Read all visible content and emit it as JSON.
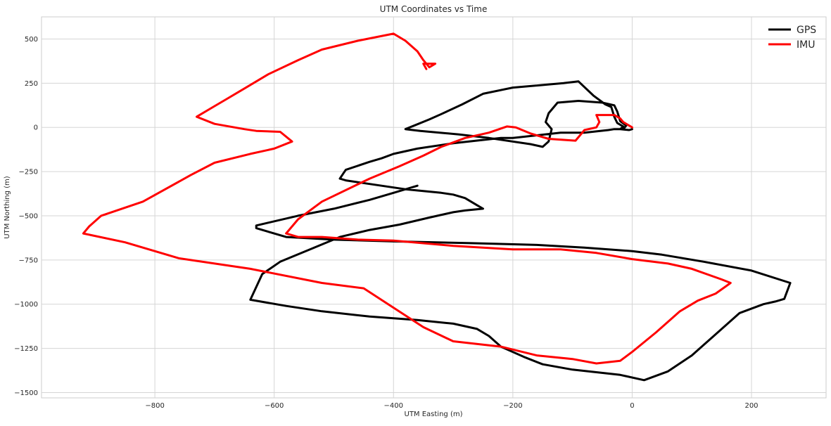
{
  "chart_data": {
    "type": "line",
    "title": "UTM Coordinates vs Time",
    "xlabel": "UTM Easting (m)",
    "ylabel": "UTM Northing (m)",
    "xlim": [
      -990,
      325
    ],
    "ylim": [
      -1530,
      625
    ],
    "xticks": [
      -800,
      -600,
      -400,
      -200,
      0,
      200
    ],
    "yticks": [
      500,
      250,
      0,
      -250,
      -500,
      -750,
      -1000,
      -1250,
      -1500
    ],
    "xtick_labels": [
      "−800",
      "−600",
      "−400",
      "−200",
      "0",
      "200"
    ],
    "ytick_labels": [
      "500",
      "250",
      "0",
      "−250",
      "−500",
      "−750",
      "−1000",
      "−1250",
      "−1500"
    ],
    "grid": true,
    "legend_position": "top-right",
    "series": [
      {
        "name": "GPS",
        "color": "#000000",
        "points": [
          [
            0,
            -10
          ],
          [
            -5,
            -15
          ],
          [
            -20,
            -10
          ],
          [
            -15,
            5
          ],
          [
            -25,
            25
          ],
          [
            -30,
            60
          ],
          [
            -35,
            115
          ],
          [
            -45,
            130
          ],
          [
            -65,
            180
          ],
          [
            -90,
            260
          ],
          [
            -115,
            250
          ],
          [
            -200,
            225
          ],
          [
            -250,
            190
          ],
          [
            -285,
            130
          ],
          [
            -320,
            75
          ],
          [
            -340,
            45
          ],
          [
            -380,
            -10
          ],
          [
            -355,
            -20
          ],
          [
            -290,
            -40
          ],
          [
            -240,
            -60
          ],
          [
            -170,
            -95
          ],
          [
            -150,
            -110
          ],
          [
            -140,
            -80
          ],
          [
            -135,
            -10
          ],
          [
            -145,
            30
          ],
          [
            -140,
            80
          ],
          [
            -125,
            140
          ],
          [
            -90,
            150
          ],
          [
            -50,
            140
          ],
          [
            -30,
            125
          ],
          [
            -25,
            90
          ],
          [
            -20,
            35
          ],
          [
            -10,
            10
          ],
          [
            -15,
            -10
          ],
          [
            -30,
            -10
          ],
          [
            -40,
            -15
          ],
          [
            -80,
            -30
          ],
          [
            -120,
            -30
          ],
          [
            -200,
            -60
          ],
          [
            -220,
            -60
          ],
          [
            -300,
            -90
          ],
          [
            -360,
            -120
          ],
          [
            -400,
            -150
          ],
          [
            -420,
            -175
          ],
          [
            -440,
            -195
          ],
          [
            -480,
            -240
          ],
          [
            -490,
            -290
          ],
          [
            -480,
            -300
          ],
          [
            -440,
            -320
          ],
          [
            -380,
            -350
          ],
          [
            -320,
            -370
          ],
          [
            -300,
            -380
          ],
          [
            -280,
            -400
          ],
          [
            -260,
            -440
          ],
          [
            -250,
            -460
          ],
          [
            -280,
            -470
          ],
          [
            -300,
            -480
          ],
          [
            -340,
            -510
          ],
          [
            -390,
            -550
          ],
          [
            -440,
            -580
          ],
          [
            -490,
            -620
          ],
          [
            -540,
            -690
          ],
          [
            -590,
            -760
          ],
          [
            -620,
            -830
          ],
          [
            -640,
            -975
          ],
          [
            -580,
            -1010
          ],
          [
            -520,
            -1040
          ],
          [
            -440,
            -1070
          ],
          [
            -360,
            -1090
          ],
          [
            -300,
            -1110
          ],
          [
            -260,
            -1140
          ],
          [
            -240,
            -1180
          ],
          [
            -220,
            -1240
          ],
          [
            -180,
            -1300
          ],
          [
            -150,
            -1340
          ],
          [
            -100,
            -1370
          ],
          [
            -20,
            -1400
          ],
          [
            20,
            -1430
          ],
          [
            60,
            -1380
          ],
          [
            100,
            -1290
          ],
          [
            120,
            -1230
          ],
          [
            180,
            -1050
          ],
          [
            220,
            -1000
          ],
          [
            240,
            -985
          ],
          [
            255,
            -970
          ],
          [
            265,
            -880
          ],
          [
            200,
            -810
          ],
          [
            120,
            -760
          ],
          [
            50,
            -720
          ],
          [
            0,
            -700
          ],
          [
            -80,
            -680
          ],
          [
            -160,
            -665
          ],
          [
            -270,
            -655
          ],
          [
            -400,
            -645
          ],
          [
            -500,
            -635
          ],
          [
            -580,
            -620
          ],
          [
            -630,
            -570
          ],
          [
            -630,
            -555
          ],
          [
            -560,
            -500
          ],
          [
            -500,
            -460
          ],
          [
            -440,
            -410
          ],
          [
            -400,
            -370
          ],
          [
            -360,
            -330
          ]
        ]
      },
      {
        "name": "IMU",
        "color": "#ff0000",
        "points": [
          [
            0,
            0
          ],
          [
            -5,
            10
          ],
          [
            -15,
            30
          ],
          [
            -20,
            50
          ],
          [
            -30,
            70
          ],
          [
            -60,
            70
          ],
          [
            -55,
            30
          ],
          [
            -60,
            0
          ],
          [
            -80,
            -15
          ],
          [
            -95,
            -75
          ],
          [
            -140,
            -65
          ],
          [
            -170,
            -35
          ],
          [
            -195,
            0
          ],
          [
            -210,
            5
          ],
          [
            -240,
            -30
          ],
          [
            -280,
            -60
          ],
          [
            -320,
            -110
          ],
          [
            -350,
            -160
          ],
          [
            -390,
            -220
          ],
          [
            -440,
            -290
          ],
          [
            -520,
            -420
          ],
          [
            -560,
            -520
          ],
          [
            -580,
            -600
          ],
          [
            -560,
            -620
          ],
          [
            -520,
            -620
          ],
          [
            -460,
            -635
          ],
          [
            -400,
            -640
          ],
          [
            -300,
            -670
          ],
          [
            -200,
            -690
          ],
          [
            -120,
            -690
          ],
          [
            -60,
            -710
          ],
          [
            0,
            -745
          ],
          [
            60,
            -770
          ],
          [
            100,
            -800
          ],
          [
            150,
            -860
          ],
          [
            165,
            -880
          ],
          [
            140,
            -940
          ],
          [
            110,
            -980
          ],
          [
            80,
            -1040
          ],
          [
            40,
            -1160
          ],
          [
            0,
            -1270
          ],
          [
            -20,
            -1320
          ],
          [
            -60,
            -1335
          ],
          [
            -100,
            -1310
          ],
          [
            -160,
            -1290
          ],
          [
            -220,
            -1240
          ],
          [
            -300,
            -1210
          ],
          [
            -350,
            -1130
          ],
          [
            -400,
            -1020
          ],
          [
            -450,
            -910
          ],
          [
            -520,
            -880
          ],
          [
            -640,
            -800
          ],
          [
            -760,
            -740
          ],
          [
            -850,
            -650
          ],
          [
            -920,
            -600
          ],
          [
            -910,
            -560
          ],
          [
            -890,
            -500
          ],
          [
            -820,
            -420
          ],
          [
            -740,
            -270
          ],
          [
            -700,
            -200
          ],
          [
            -640,
            -150
          ],
          [
            -600,
            -120
          ],
          [
            -570,
            -80
          ],
          [
            -590,
            -25
          ],
          [
            -630,
            -20
          ],
          [
            -650,
            -10
          ],
          [
            -700,
            20
          ],
          [
            -730,
            60
          ],
          [
            -700,
            120
          ],
          [
            -680,
            160
          ],
          [
            -650,
            220
          ],
          [
            -610,
            300
          ],
          [
            -560,
            380
          ],
          [
            -520,
            440
          ],
          [
            -460,
            490
          ],
          [
            -400,
            530
          ],
          [
            -380,
            490
          ],
          [
            -360,
            430
          ],
          [
            -350,
            380
          ],
          [
            -340,
            340
          ],
          [
            -330,
            360
          ],
          [
            -350,
            360
          ],
          [
            -345,
            330
          ]
        ]
      }
    ]
  }
}
